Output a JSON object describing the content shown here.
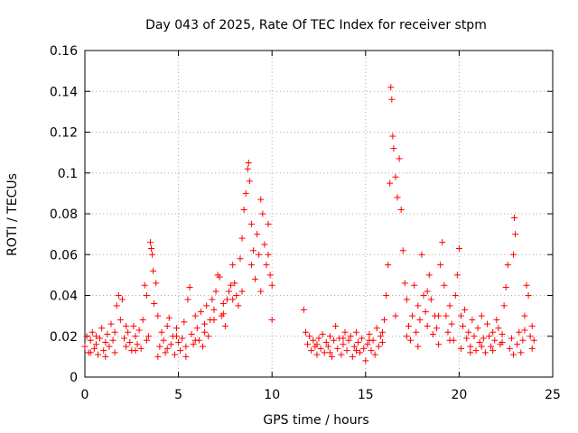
{
  "chart_data": {
    "type": "scatter",
    "title": "Day 043 of 2025, Rate Of TEC Index for receiver stpm",
    "xlabel": "GPS time / hours",
    "ylabel": "ROTI / TECUs",
    "xlim": [
      0,
      25
    ],
    "ylim": [
      0,
      0.16
    ],
    "xticks": [
      0,
      5,
      10,
      15,
      20,
      25
    ],
    "xtick_labels": [
      "0",
      "5",
      "10",
      "15",
      "20",
      "25"
    ],
    "yticks": [
      0,
      0.02,
      0.04,
      0.06,
      0.08,
      0.1,
      0.12,
      0.14,
      0.16
    ],
    "ytick_labels": [
      "0",
      "0.02",
      "0.04",
      "0.06",
      "0.08",
      "0.1",
      "0.12",
      "0.14",
      "0.16"
    ],
    "grid": true,
    "marker": "plus",
    "color": "#ff0000",
    "series": [
      {
        "name": "ROTI",
        "points": [
          [
            0.0,
            0.015
          ],
          [
            0.1,
            0.02
          ],
          [
            0.2,
            0.012
          ],
          [
            0.3,
            0.018
          ],
          [
            0.4,
            0.022
          ],
          [
            0.5,
            0.014
          ],
          [
            0.6,
            0.016
          ],
          [
            0.7,
            0.011
          ],
          [
            0.8,
            0.019
          ],
          [
            0.9,
            0.024
          ],
          [
            1.0,
            0.013
          ],
          [
            1.1,
            0.017
          ],
          [
            1.2,
            0.021
          ],
          [
            1.3,
            0.015
          ],
          [
            1.4,
            0.026
          ],
          [
            1.5,
            0.018
          ],
          [
            1.6,
            0.012
          ],
          [
            1.7,
            0.035
          ],
          [
            1.8,
            0.04
          ],
          [
            1.9,
            0.028
          ],
          [
            2.0,
            0.038
          ],
          [
            2.1,
            0.019
          ],
          [
            2.2,
            0.015
          ],
          [
            2.3,
            0.022
          ],
          [
            2.4,
            0.017
          ],
          [
            2.5,
            0.013
          ],
          [
            2.6,
            0.025
          ],
          [
            2.7,
            0.02
          ],
          [
            2.8,
            0.016
          ],
          [
            2.9,
            0.023
          ],
          [
            3.0,
            0.014
          ],
          [
            3.1,
            0.028
          ],
          [
            3.2,
            0.045
          ],
          [
            3.3,
            0.04
          ],
          [
            3.4,
            0.02
          ],
          [
            3.5,
            0.066
          ],
          [
            3.55,
            0.063
          ],
          [
            3.6,
            0.06
          ],
          [
            3.65,
            0.052
          ],
          [
            3.7,
            0.036
          ],
          [
            3.8,
            0.046
          ],
          [
            3.9,
            0.03
          ],
          [
            4.0,
            0.015
          ],
          [
            4.1,
            0.022
          ],
          [
            4.2,
            0.018
          ],
          [
            4.3,
            0.012
          ],
          [
            4.4,
            0.025
          ],
          [
            4.5,
            0.029
          ],
          [
            4.6,
            0.016
          ],
          [
            4.7,
            0.02
          ],
          [
            4.8,
            0.011
          ],
          [
            4.9,
            0.024
          ],
          [
            5.0,
            0.017
          ],
          [
            5.1,
            0.013
          ],
          [
            5.2,
            0.019
          ],
          [
            5.3,
            0.027
          ],
          [
            5.4,
            0.015
          ],
          [
            5.5,
            0.038
          ],
          [
            5.6,
            0.044
          ],
          [
            5.7,
            0.021
          ],
          [
            5.8,
            0.016
          ],
          [
            5.9,
            0.03
          ],
          [
            6.0,
            0.024
          ],
          [
            6.1,
            0.018
          ],
          [
            6.2,
            0.032
          ],
          [
            6.3,
            0.015
          ],
          [
            6.4,
            0.026
          ],
          [
            6.5,
            0.035
          ],
          [
            6.6,
            0.02
          ],
          [
            6.7,
            0.028
          ],
          [
            6.8,
            0.038
          ],
          [
            6.9,
            0.033
          ],
          [
            7.0,
            0.042
          ],
          [
            7.1,
            0.05
          ],
          [
            7.2,
            0.049
          ],
          [
            7.3,
            0.03
          ],
          [
            7.4,
            0.036
          ],
          [
            7.5,
            0.025
          ],
          [
            7.6,
            0.038
          ],
          [
            7.7,
            0.042
          ],
          [
            7.8,
            0.045
          ],
          [
            7.9,
            0.055
          ],
          [
            8.0,
            0.046
          ],
          [
            8.1,
            0.04
          ],
          [
            8.2,
            0.035
          ],
          [
            8.3,
            0.058
          ],
          [
            8.4,
            0.068
          ],
          [
            8.5,
            0.082
          ],
          [
            8.6,
            0.09
          ],
          [
            8.7,
            0.102
          ],
          [
            8.75,
            0.105
          ],
          [
            8.8,
            0.096
          ],
          [
            8.9,
            0.075
          ],
          [
            9.0,
            0.062
          ],
          [
            9.1,
            0.048
          ],
          [
            9.2,
            0.07
          ],
          [
            9.3,
            0.06
          ],
          [
            9.4,
            0.087
          ],
          [
            9.5,
            0.08
          ],
          [
            9.6,
            0.065
          ],
          [
            9.7,
            0.055
          ],
          [
            9.8,
            0.06
          ],
          [
            9.9,
            0.05
          ],
          [
            10.0,
            0.045
          ],
          [
            10.0,
            0.028
          ],
          [
            11.7,
            0.033
          ],
          [
            11.8,
            0.022
          ],
          [
            11.9,
            0.016
          ],
          [
            12.0,
            0.02
          ],
          [
            12.1,
            0.013
          ],
          [
            12.2,
            0.018
          ],
          [
            12.3,
            0.015
          ],
          [
            12.4,
            0.011
          ],
          [
            12.5,
            0.019
          ],
          [
            12.6,
            0.014
          ],
          [
            12.7,
            0.021
          ],
          [
            12.8,
            0.012
          ],
          [
            12.9,
            0.017
          ],
          [
            13.0,
            0.015
          ],
          [
            13.1,
            0.02
          ],
          [
            13.2,
            0.01
          ],
          [
            13.3,
            0.018
          ],
          [
            13.4,
            0.025
          ],
          [
            13.5,
            0.014
          ],
          [
            13.6,
            0.019
          ],
          [
            13.7,
            0.011
          ],
          [
            13.8,
            0.016
          ],
          [
            13.9,
            0.022
          ],
          [
            14.0,
            0.013
          ],
          [
            14.1,
            0.018
          ],
          [
            14.2,
            0.02
          ],
          [
            14.3,
            0.01
          ],
          [
            14.4,
            0.015
          ],
          [
            14.5,
            0.022
          ],
          [
            14.6,
            0.017
          ],
          [
            14.7,
            0.012
          ],
          [
            14.8,
            0.019
          ],
          [
            14.9,
            0.014
          ],
          [
            15.0,
            0.008
          ],
          [
            15.1,
            0.016
          ],
          [
            15.2,
            0.021
          ],
          [
            15.3,
            0.013
          ],
          [
            15.4,
            0.018
          ],
          [
            15.5,
            0.011
          ],
          [
            15.6,
            0.024
          ],
          [
            15.7,
            0.015
          ],
          [
            15.8,
            0.02
          ],
          [
            15.9,
            0.017
          ],
          [
            16.0,
            0.028
          ],
          [
            16.1,
            0.04
          ],
          [
            16.2,
            0.055
          ],
          [
            16.3,
            0.095
          ],
          [
            16.35,
            0.142
          ],
          [
            16.4,
            0.136
          ],
          [
            16.45,
            0.118
          ],
          [
            16.5,
            0.112
          ],
          [
            16.6,
            0.098
          ],
          [
            16.7,
            0.088
          ],
          [
            16.8,
            0.107
          ],
          [
            16.9,
            0.082
          ],
          [
            17.0,
            0.062
          ],
          [
            17.1,
            0.046
          ],
          [
            17.2,
            0.038
          ],
          [
            17.3,
            0.025
          ],
          [
            17.4,
            0.018
          ],
          [
            17.5,
            0.03
          ],
          [
            17.6,
            0.045
          ],
          [
            17.7,
            0.022
          ],
          [
            17.8,
            0.035
          ],
          [
            17.9,
            0.028
          ],
          [
            18.0,
            0.06
          ],
          [
            18.1,
            0.04
          ],
          [
            18.2,
            0.032
          ],
          [
            18.3,
            0.025
          ],
          [
            18.4,
            0.05
          ],
          [
            18.5,
            0.038
          ],
          [
            18.6,
            0.021
          ],
          [
            18.7,
            0.03
          ],
          [
            18.8,
            0.024
          ],
          [
            18.9,
            0.016
          ],
          [
            19.0,
            0.055
          ],
          [
            19.1,
            0.066
          ],
          [
            19.2,
            0.045
          ],
          [
            19.3,
            0.03
          ],
          [
            19.4,
            0.022
          ],
          [
            19.5,
            0.035
          ],
          [
            19.6,
            0.026
          ],
          [
            19.7,
            0.018
          ],
          [
            19.8,
            0.04
          ],
          [
            19.9,
            0.05
          ],
          [
            20.0,
            0.063
          ],
          [
            20.1,
            0.014
          ],
          [
            20.2,
            0.025
          ],
          [
            20.3,
            0.033
          ],
          [
            20.4,
            0.019
          ],
          [
            20.5,
            0.022
          ],
          [
            20.6,
            0.015
          ],
          [
            20.7,
            0.028
          ],
          [
            20.8,
            0.02
          ],
          [
            20.9,
            0.013
          ],
          [
            21.0,
            0.024
          ],
          [
            21.1,
            0.017
          ],
          [
            21.2,
            0.03
          ],
          [
            21.3,
            0.019
          ],
          [
            21.4,
            0.012
          ],
          [
            21.5,
            0.026
          ],
          [
            21.6,
            0.02
          ],
          [
            21.7,
            0.015
          ],
          [
            21.8,
            0.022
          ],
          [
            21.9,
            0.018
          ],
          [
            22.0,
            0.028
          ],
          [
            22.1,
            0.024
          ],
          [
            22.2,
            0.016
          ],
          [
            22.3,
            0.021
          ],
          [
            22.4,
            0.035
          ],
          [
            22.5,
            0.044
          ],
          [
            22.6,
            0.055
          ],
          [
            22.7,
            0.014
          ],
          [
            22.8,
            0.019
          ],
          [
            22.9,
            0.06
          ],
          [
            22.95,
            0.078
          ],
          [
            23.0,
            0.07
          ],
          [
            23.1,
            0.016
          ],
          [
            23.2,
            0.022
          ],
          [
            23.3,
            0.012
          ],
          [
            23.4,
            0.018
          ],
          [
            23.5,
            0.03
          ],
          [
            23.6,
            0.045
          ],
          [
            23.7,
            0.04
          ],
          [
            23.8,
            0.02
          ],
          [
            23.9,
            0.014
          ],
          [
            24.0,
            0.018
          ],
          [
            0.3,
            0.012
          ],
          [
            0.6,
            0.02
          ],
          [
            1.1,
            0.01
          ],
          [
            1.6,
            0.022
          ],
          [
            2.2,
            0.025
          ],
          [
            2.7,
            0.013
          ],
          [
            3.3,
            0.018
          ],
          [
            3.9,
            0.01
          ],
          [
            4.4,
            0.014
          ],
          [
            4.9,
            0.02
          ],
          [
            5.4,
            0.01
          ],
          [
            5.9,
            0.018
          ],
          [
            6.4,
            0.022
          ],
          [
            6.9,
            0.028
          ],
          [
            7.4,
            0.031
          ],
          [
            7.9,
            0.038
          ],
          [
            8.4,
            0.042
          ],
          [
            8.9,
            0.055
          ],
          [
            9.4,
            0.042
          ],
          [
            9.8,
            0.075
          ],
          [
            12.4,
            0.016
          ],
          [
            13.1,
            0.012
          ],
          [
            13.8,
            0.019
          ],
          [
            14.5,
            0.013
          ],
          [
            15.2,
            0.018
          ],
          [
            15.9,
            0.022
          ],
          [
            16.6,
            0.03
          ],
          [
            17.2,
            0.02
          ],
          [
            17.8,
            0.015
          ],
          [
            18.3,
            0.042
          ],
          [
            18.9,
            0.03
          ],
          [
            19.5,
            0.018
          ],
          [
            20.1,
            0.03
          ],
          [
            20.6,
            0.012
          ],
          [
            21.2,
            0.015
          ],
          [
            21.8,
            0.013
          ],
          [
            22.3,
            0.017
          ],
          [
            22.9,
            0.011
          ],
          [
            23.5,
            0.023
          ],
          [
            23.9,
            0.025
          ]
        ]
      }
    ]
  }
}
